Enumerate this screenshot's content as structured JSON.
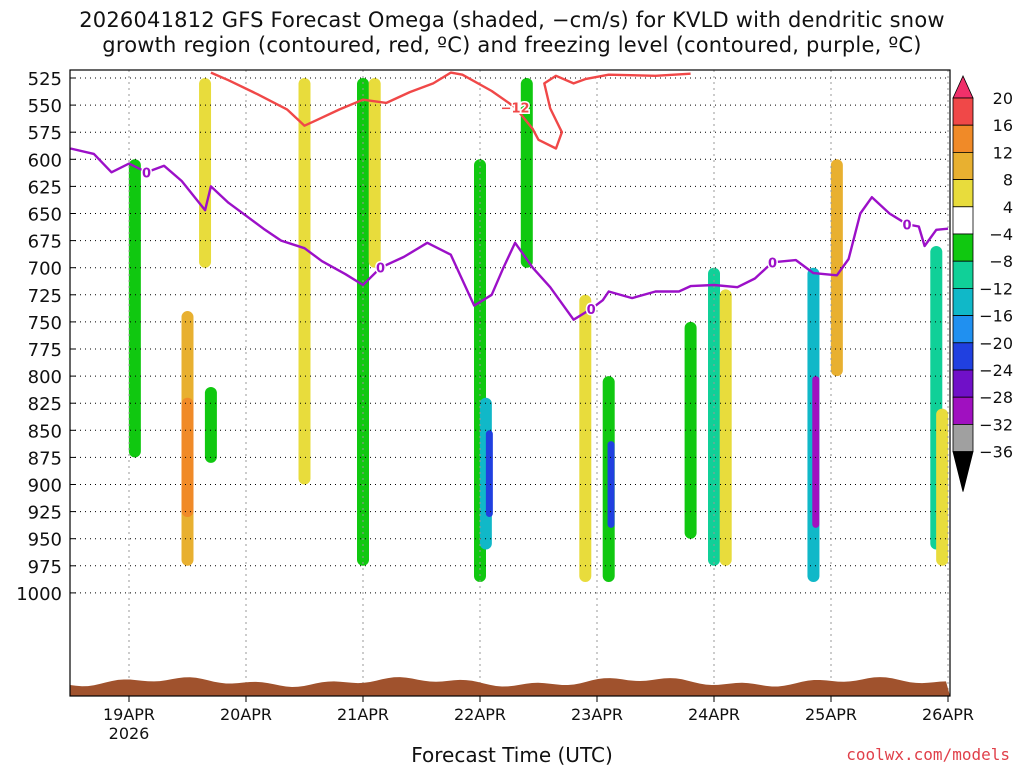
{
  "title": {
    "line1": "2026041812 GFS Forecast Omega (shaded, −cm/s) for KVLD with dendritic snow",
    "line2": "growth region (contoured, red, ºC) and freezing level (contoured, purple, ºC)"
  },
  "footer": {
    "xlabel": "Forecast Time (UTC)",
    "credit": "coolwx.com/models"
  },
  "chart_data": {
    "type": "heatmap",
    "y_axis": {
      "levels": [
        525,
        550,
        575,
        600,
        625,
        650,
        675,
        700,
        725,
        750,
        775,
        800,
        825,
        850,
        875,
        900,
        925,
        950,
        975,
        1000
      ],
      "inverted": true,
      "grid": true
    },
    "x_axis": {
      "ticks": [
        {
          "label": "19APR",
          "sublabel": "2026"
        },
        {
          "label": "20APR"
        },
        {
          "label": "21APR"
        },
        {
          "label": "22APR"
        },
        {
          "label": "23APR"
        },
        {
          "label": "24APR"
        },
        {
          "label": "25APR"
        },
        {
          "label": "26APR"
        }
      ],
      "grid": true
    },
    "colorbar": {
      "labels": [
        "20",
        "16",
        "12",
        "8",
        "4",
        "−4",
        "−8",
        "−12",
        "−16",
        "−20",
        "−24",
        "−28",
        "−32",
        "−36"
      ],
      "colors": [
        "#f0306a",
        "#f04848",
        "#f08a28",
        "#e8b030",
        "#e8dc3c",
        "#ffffff",
        "#10c810",
        "#10d098",
        "#10b8c8",
        "#2090f0",
        "#2040e0",
        "#7010c8",
        "#a010c0",
        "#a0a0a0",
        "#000000"
      ]
    },
    "shading": [
      {
        "day": 0.05,
        "top": 600,
        "bottom": 875,
        "value": -6
      },
      {
        "day": 0.5,
        "top": 740,
        "bottom": 975,
        "value": 8
      },
      {
        "day": 0.5,
        "top": 820,
        "bottom": 930,
        "value": 12
      },
      {
        "day": 0.65,
        "top": 525,
        "bottom": 700,
        "value": 5
      },
      {
        "day": 0.7,
        "top": 810,
        "bottom": 880,
        "value": -6
      },
      {
        "day": 1.5,
        "top": 525,
        "bottom": 900,
        "value": 5
      },
      {
        "day": 2.0,
        "top": 525,
        "bottom": 975,
        "value": -6
      },
      {
        "day": 2.1,
        "top": 525,
        "bottom": 700,
        "value": 5
      },
      {
        "day": 3.0,
        "top": 600,
        "bottom": 990,
        "value": -6
      },
      {
        "day": 3.05,
        "top": 820,
        "bottom": 960,
        "value": -14
      },
      {
        "day": 3.08,
        "top": 850,
        "bottom": 930,
        "value": -22
      },
      {
        "day": 3.4,
        "top": 525,
        "bottom": 700,
        "value": -6
      },
      {
        "day": 3.9,
        "top": 725,
        "bottom": 990,
        "value": 5
      },
      {
        "day": 4.1,
        "top": 800,
        "bottom": 990,
        "value": -6
      },
      {
        "day": 4.12,
        "top": 860,
        "bottom": 940,
        "value": -20
      },
      {
        "day": 4.8,
        "top": 750,
        "bottom": 950,
        "value": -6
      },
      {
        "day": 5.0,
        "top": 700,
        "bottom": 975,
        "value": -10
      },
      {
        "day": 5.1,
        "top": 720,
        "bottom": 975,
        "value": 5
      },
      {
        "day": 5.85,
        "top": 700,
        "bottom": 990,
        "value": -14
      },
      {
        "day": 5.87,
        "top": 800,
        "bottom": 940,
        "value": -28
      },
      {
        "day": 6.05,
        "top": 600,
        "bottom": 800,
        "value": 10
      },
      {
        "day": 6.9,
        "top": 680,
        "bottom": 960,
        "value": -10
      },
      {
        "day": 6.95,
        "top": 830,
        "bottom": 975,
        "value": 5
      }
    ],
    "freezing_level": {
      "label": "0",
      "path": [
        [
          -0.5,
          590
        ],
        [
          -0.3,
          595
        ],
        [
          -0.15,
          612
        ],
        [
          0.0,
          604
        ],
        [
          0.15,
          612
        ],
        [
          0.3,
          606
        ],
        [
          0.45,
          620
        ],
        [
          0.65,
          647
        ],
        [
          0.7,
          625
        ],
        [
          0.85,
          640
        ],
        [
          1.0,
          652
        ],
        [
          1.15,
          664
        ],
        [
          1.3,
          675
        ],
        [
          1.5,
          682
        ],
        [
          1.65,
          694
        ],
        [
          1.85,
          706
        ],
        [
          2.0,
          716
        ],
        [
          2.15,
          700
        ],
        [
          2.35,
          690
        ],
        [
          2.55,
          677
        ],
        [
          2.75,
          688
        ],
        [
          2.95,
          735
        ],
        [
          3.1,
          725
        ],
        [
          3.2,
          700
        ],
        [
          3.3,
          677
        ],
        [
          3.45,
          700
        ],
        [
          3.6,
          718
        ],
        [
          3.8,
          748
        ],
        [
          3.95,
          738
        ],
        [
          4.05,
          730
        ],
        [
          4.1,
          722
        ],
        [
          4.3,
          728
        ],
        [
          4.5,
          722
        ],
        [
          4.7,
          722
        ],
        [
          4.8,
          717
        ],
        [
          5.0,
          716
        ],
        [
          5.2,
          718
        ],
        [
          5.35,
          710
        ],
        [
          5.5,
          695
        ],
        [
          5.7,
          693
        ],
        [
          5.85,
          705
        ],
        [
          6.05,
          707
        ],
        [
          6.15,
          692
        ],
        [
          6.25,
          650
        ],
        [
          6.35,
          635
        ],
        [
          6.5,
          650
        ],
        [
          6.65,
          660
        ],
        [
          6.75,
          662
        ],
        [
          6.8,
          680
        ],
        [
          6.9,
          665
        ],
        [
          7.0,
          664
        ]
      ]
    },
    "dendritic_contour": {
      "label": "−12",
      "path": [
        [
          0.7,
          520
        ],
        [
          0.85,
          527
        ],
        [
          1.1,
          540
        ],
        [
          1.35,
          554
        ],
        [
          1.5,
          569
        ],
        [
          1.6,
          564
        ],
        [
          1.8,
          554
        ],
        [
          2.0,
          545
        ],
        [
          2.2,
          548
        ],
        [
          2.4,
          538
        ],
        [
          2.6,
          530
        ],
        [
          2.75,
          520
        ],
        [
          2.85,
          522
        ],
        [
          3.1,
          537
        ],
        [
          3.3,
          552
        ],
        [
          3.45,
          572
        ],
        [
          3.5,
          582
        ],
        [
          3.65,
          590
        ],
        [
          3.7,
          575
        ],
        [
          3.6,
          553
        ],
        [
          3.55,
          530
        ],
        [
          3.65,
          523
        ],
        [
          3.8,
          530
        ],
        [
          3.9,
          526
        ],
        [
          4.1,
          522
        ],
        [
          4.5,
          523
        ],
        [
          4.8,
          521
        ]
      ]
    }
  }
}
